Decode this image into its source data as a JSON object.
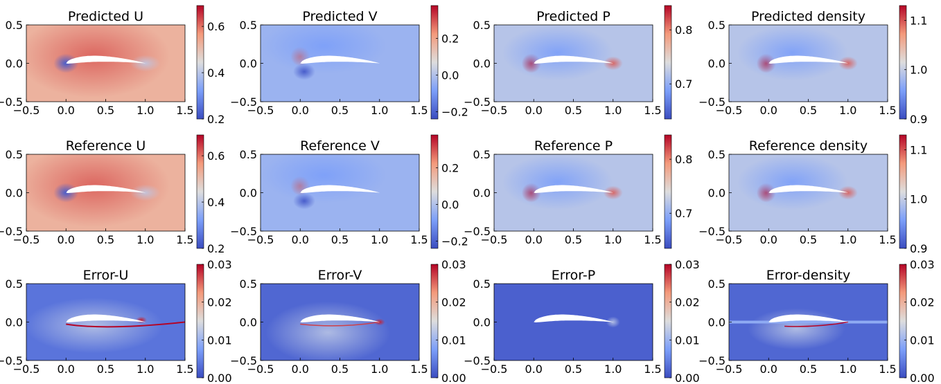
{
  "chart_data": {
    "type": "heatmap",
    "grid": false,
    "colormap": "coolwarm",
    "x_ticks": [
      "−0.5",
      "0.0",
      "0.5",
      "1.0",
      "1.5"
    ],
    "y_ticks": [
      "0.5",
      "0.0",
      "−0.5"
    ],
    "xlim": [
      -0.5,
      1.5
    ],
    "ylim": [
      -0.5,
      0.5
    ],
    "rows": [
      {
        "row": "predicted",
        "panels": [
          {
            "title": "Predicted U",
            "kind": "U",
            "cbar": {
              "ticks": [
                0.2,
                0.4,
                0.6
              ],
              "tick_labels": [
                "0.2",
                "0.4",
                "0.6"
              ],
              "range": [
                0.2,
                0.69
              ]
            }
          },
          {
            "title": "Predicted V",
            "kind": "V",
            "cbar": {
              "ticks": [
                -0.2,
                0.0,
                0.2
              ],
              "tick_labels": [
                "−0.2",
                "0.0",
                "0.2"
              ],
              "range": [
                -0.24,
                0.38
              ]
            }
          },
          {
            "title": "Predicted P",
            "kind": "P",
            "cbar": {
              "ticks": [
                0.7,
                0.8
              ],
              "tick_labels": [
                "0.7",
                "0.8"
              ],
              "range": [
                0.635,
                0.845
              ]
            }
          },
          {
            "title": "Predicted density",
            "kind": "D",
            "cbar": {
              "ticks": [
                0.9,
                1.0,
                1.1
              ],
              "tick_labels": [
                "0.9",
                "1.0",
                "1.1"
              ],
              "range": [
                0.9,
                1.13
              ]
            }
          }
        ]
      },
      {
        "row": "reference",
        "panels": [
          {
            "title": "Reference U",
            "kind": "U",
            "cbar": {
              "ticks": [
                0.2,
                0.4,
                0.6
              ],
              "tick_labels": [
                "0.2",
                "0.4",
                "0.6"
              ],
              "range": [
                0.2,
                0.69
              ]
            }
          },
          {
            "title": "Reference V",
            "kind": "V",
            "cbar": {
              "ticks": [
                -0.2,
                0.0,
                0.2
              ],
              "tick_labels": [
                "−0.2",
                "0.0",
                "0.2"
              ],
              "range": [
                -0.24,
                0.38
              ]
            }
          },
          {
            "title": "Reference P",
            "kind": "P",
            "cbar": {
              "ticks": [
                0.7,
                0.8
              ],
              "tick_labels": [
                "0.7",
                "0.8"
              ],
              "range": [
                0.635,
                0.845
              ]
            }
          },
          {
            "title": "Reference density",
            "kind": "D",
            "cbar": {
              "ticks": [
                0.9,
                1.0,
                1.1
              ],
              "tick_labels": [
                "0.9",
                "1.0",
                "1.1"
              ],
              "range": [
                0.9,
                1.13
              ]
            }
          }
        ]
      },
      {
        "row": "error",
        "panels": [
          {
            "title": "Error-U",
            "kind": "EU",
            "cbar": {
              "ticks": [
                0.0,
                0.01,
                0.02,
                0.03
              ],
              "tick_labels": [
                "0.00",
                "0.01",
                "0.02",
                "0.03"
              ],
              "range": [
                0.0,
                0.03
              ]
            }
          },
          {
            "title": "Error-V",
            "kind": "EV",
            "cbar": {
              "ticks": [
                0.0,
                0.01,
                0.02,
                0.03
              ],
              "tick_labels": [
                "0.00",
                "0.01",
                "0.02",
                "0.03"
              ],
              "range": [
                0.0,
                0.03
              ]
            }
          },
          {
            "title": "Error-P",
            "kind": "EP",
            "cbar": {
              "ticks": [
                0.0,
                0.01,
                0.02,
                0.03
              ],
              "tick_labels": [
                "0.00",
                "0.01",
                "0.02",
                "0.03"
              ],
              "range": [
                0.0,
                0.03
              ]
            }
          },
          {
            "title": "Error-density",
            "kind": "ED",
            "cbar": {
              "ticks": [
                0.0,
                0.01,
                0.02,
                0.03
              ],
              "tick_labels": [
                "0.00",
                "0.01",
                "0.02",
                "0.03"
              ],
              "range": [
                0.0,
                0.03
              ]
            }
          }
        ]
      }
    ]
  },
  "colors": {
    "cmap_low": "#3b4cc0",
    "cmap_mid": "#dddddd",
    "cmap_high": "#b40426",
    "airfoil": "#ffffff"
  }
}
